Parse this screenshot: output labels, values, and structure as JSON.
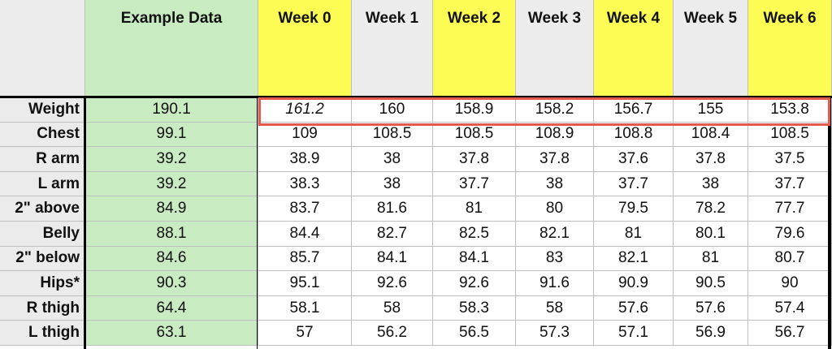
{
  "columns": [
    "Example Data",
    "Week 0",
    "Week 1",
    "Week 2",
    "Week 3",
    "Week 4",
    "Week 5",
    "Week 6"
  ],
  "column_colors": [
    "green",
    "yellow",
    "gray",
    "yellow",
    "gray",
    "yellow",
    "gray",
    "yellow"
  ],
  "colors": {
    "green_fill": "#c9ebc2",
    "yellow_fill": "#fcfc55",
    "gray_fill": "#ececec",
    "highlight_border": "#e05a4e"
  },
  "rows": [
    {
      "label": "Weight",
      "values": [
        "190.1",
        "161.2",
        "160",
        "158.9",
        "158.2",
        "156.7",
        "155",
        "153.8"
      ],
      "italic_cols": [
        1
      ],
      "highlighted": true
    },
    {
      "label": "Chest",
      "values": [
        "99.1",
        "109",
        "108.5",
        "108.5",
        "108.9",
        "108.8",
        "108.4",
        "108.5"
      ]
    },
    {
      "label": "R arm",
      "values": [
        "39.2",
        "38.9",
        "38",
        "37.8",
        "37.8",
        "37.6",
        "37.8",
        "37.5"
      ]
    },
    {
      "label": "L arm",
      "values": [
        "39.2",
        "38.3",
        "38",
        "37.7",
        "38",
        "37.7",
        "38",
        "37.7"
      ]
    },
    {
      "label": "2\" above",
      "values": [
        "84.9",
        "83.7",
        "81.6",
        "81",
        "80",
        "79.5",
        "78.2",
        "77.7"
      ]
    },
    {
      "label": "Belly",
      "values": [
        "88.1",
        "84.4",
        "82.7",
        "82.5",
        "82.1",
        "81",
        "80.1",
        "79.6"
      ]
    },
    {
      "label": "2\" below",
      "values": [
        "84.6",
        "85.7",
        "84.1",
        "84.1",
        "83",
        "82.1",
        "81",
        "80.7"
      ]
    },
    {
      "label": "Hips*",
      "values": [
        "90.3",
        "95.1",
        "92.6",
        "92.6",
        "91.6",
        "90.9",
        "90.5",
        "90"
      ]
    },
    {
      "label": "R thigh",
      "values": [
        "64.4",
        "58.1",
        "58",
        "58.3",
        "58",
        "57.6",
        "57.6",
        "57.4"
      ]
    },
    {
      "label": "L thigh",
      "values": [
        "63.1",
        "57",
        "56.2",
        "56.5",
        "57.3",
        "57.1",
        "56.9",
        "56.7"
      ]
    }
  ]
}
